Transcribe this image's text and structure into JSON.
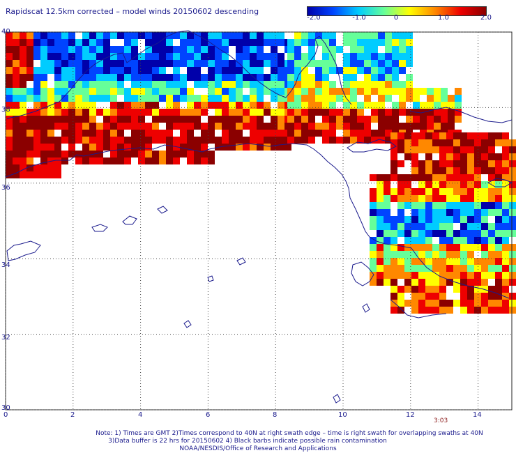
{
  "title": "Rapidscat 12.5km corrected – model winds 20150602 descending",
  "colorbar": {
    "stops": [
      "#0000aa",
      "#0044ff",
      "#00ccff",
      "#66ff99",
      "#ffff00",
      "#ff8800",
      "#ee0000",
      "#8b0000"
    ],
    "labels": [
      "-2.0",
      "-1.0",
      "0",
      "1.0",
      "2.0"
    ]
  },
  "axes": {
    "x_ticks": [
      "0",
      "2",
      "4",
      "6",
      "8",
      "10",
      "12",
      "14"
    ],
    "y_ticks": [
      "40",
      "38",
      "36",
      "34",
      "32",
      "30"
    ],
    "xlim": [
      0,
      15
    ],
    "ylim": [
      30,
      40
    ]
  },
  "timestamp": "3:03",
  "notes": {
    "line1": "Note: 1) Times are GMT 2)Times correspond to 40N at right swath edge – time is right swath for overlapping swaths at 40N",
    "line2": "3)Data buffer is 22 hrs for 20150602 4) Black barbs indicate possible rain contamination",
    "line3": "NOAA/NESDIS/Office of Research and Applications"
  },
  "colors": {
    "coast": "#1a1a8c",
    "grid": "#444444",
    "text": "#1a1a8c"
  }
}
